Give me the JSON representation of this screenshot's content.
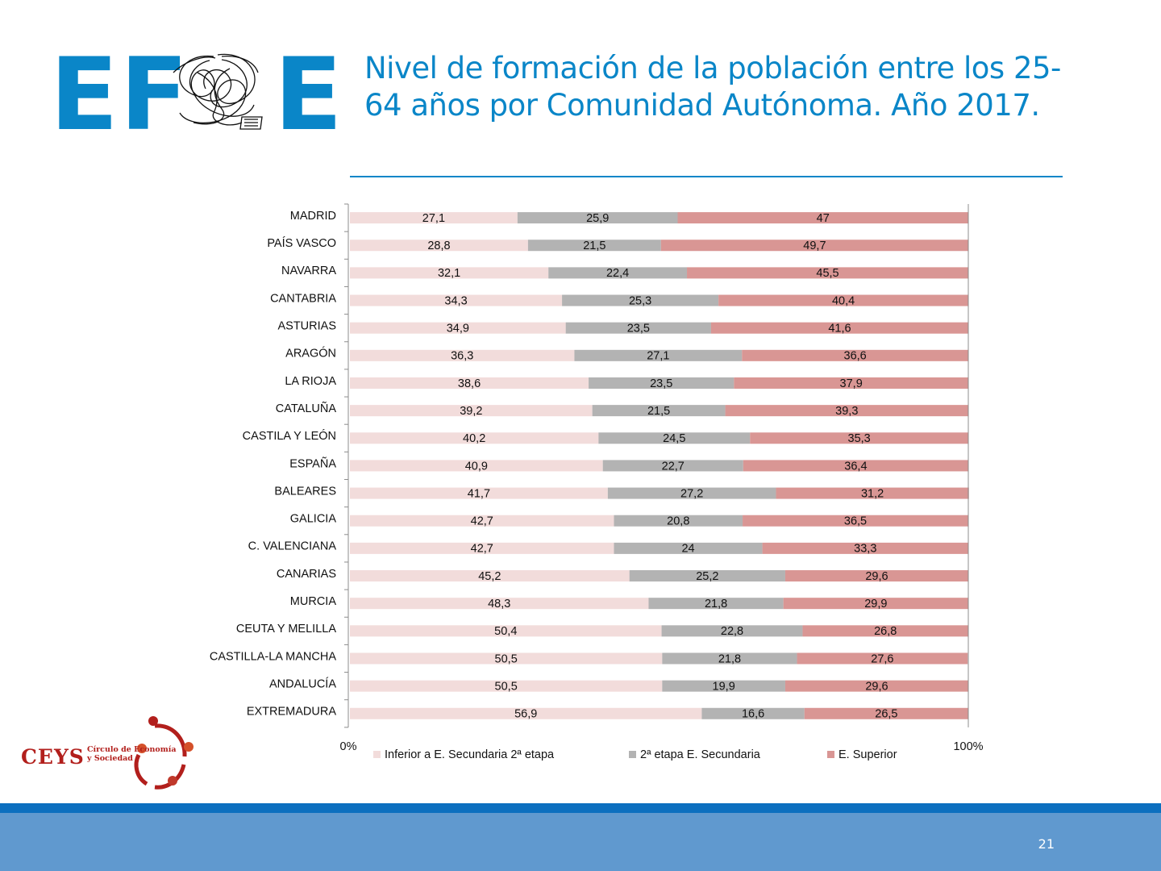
{
  "logo": {
    "left_text": "EF",
    "right_text": "E"
  },
  "title": "Nivel de formación de la población entre los 25-64 años por Comunidad Autónoma. Año 2017.",
  "ceys": {
    "name": "CEYS",
    "subtitle_line1": "Círculo de Economía",
    "subtitle_line2": "y Sociedad"
  },
  "page_number": "21",
  "colors": {
    "accent": "#0a86c8",
    "footer": "#6099cf",
    "footer_stripe": "#0c6fbf"
  },
  "chart_data": {
    "type": "bar",
    "orientation": "horizontal-stacked-100",
    "categories": [
      "MADRID",
      "PAÍS VASCO",
      "NAVARRA",
      "CANTABRIA",
      "ASTURIAS",
      "ARAGÓN",
      "LA RIOJA",
      "CATALUÑA",
      "CASTILA Y LEÓN",
      "ESPAÑA",
      "BALEARES",
      "GALICIA",
      "C. VALENCIANA",
      "CANARIAS",
      "MURCIA",
      "CEUTA Y MELILLA",
      "CASTILLA-LA MANCHA",
      "ANDALUCÍA",
      "EXTREMADURA"
    ],
    "series": [
      {
        "name": "Inferior a E. Secundaria 2ª etapa",
        "color": "#f2dcdb",
        "values": [
          27.1,
          28.8,
          32.1,
          34.3,
          34.9,
          36.3,
          38.6,
          39.2,
          40.2,
          40.9,
          41.7,
          42.7,
          42.7,
          45.2,
          48.3,
          50.4,
          50.5,
          50.5,
          56.9
        ],
        "labels": [
          "27,1",
          "28,8",
          "32,1",
          "34,3",
          "34,9",
          "36,3",
          "38,6",
          "39,2",
          "40,2",
          "40,9",
          "41,7",
          "42,7",
          "42,7",
          "45,2",
          "48,3",
          "50,4",
          "50,5",
          "50,5",
          "56,9"
        ]
      },
      {
        "name": "2ª etapa E. Secundaria",
        "color": "#b3b3b3",
        "values": [
          25.9,
          21.5,
          22.4,
          25.3,
          23.5,
          27.1,
          23.5,
          21.5,
          24.5,
          22.7,
          27.2,
          20.8,
          24,
          25.2,
          21.8,
          22.8,
          21.8,
          19.9,
          16.6
        ],
        "labels": [
          "25,9",
          "21,5",
          "22,4",
          "25,3",
          "23,5",
          "27,1",
          "23,5",
          "21,5",
          "24,5",
          "22,7",
          "27,2",
          "20,8",
          "24",
          "25,2",
          "21,8",
          "22,8",
          "21,8",
          "19,9",
          "16,6"
        ]
      },
      {
        "name": "E. Superior",
        "color": "#d99694",
        "values": [
          47,
          49.7,
          45.5,
          40.4,
          41.6,
          36.6,
          37.9,
          39.3,
          35.3,
          36.4,
          31.2,
          36.5,
          33.3,
          29.6,
          29.9,
          26.8,
          27.6,
          29.6,
          26.5
        ],
        "labels": [
          "47",
          "49,7",
          "45,5",
          "40,4",
          "41,6",
          "36,6",
          "37,9",
          "39,3",
          "35,3",
          "36,4",
          "31,2",
          "36,5",
          "33,3",
          "29,6",
          "29,9",
          "26,8",
          "27,6",
          "29,6",
          "26,5"
        ]
      }
    ],
    "xaxis_ticks": [
      "0%",
      "100%"
    ],
    "xlim": [
      0,
      100
    ],
    "legend": "bottom"
  }
}
